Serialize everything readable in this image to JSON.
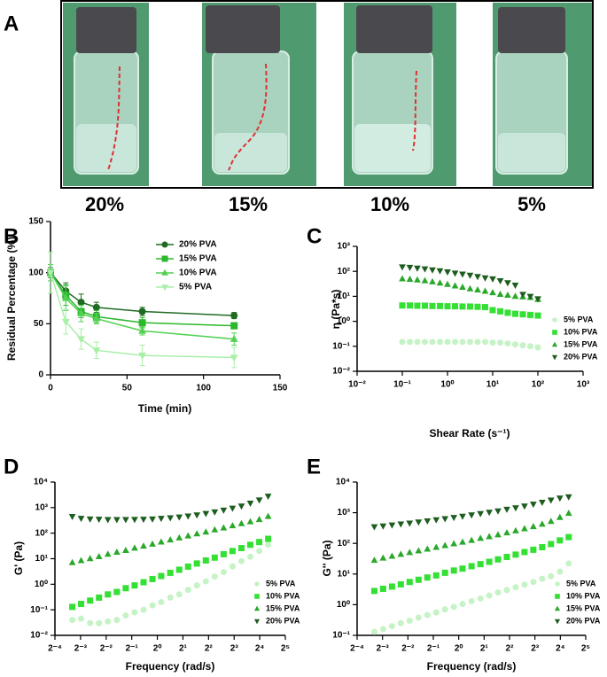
{
  "panel_a": {
    "label": "A",
    "captions": [
      "20%",
      "15%",
      "10%",
      "5%"
    ]
  },
  "chart_data": [
    {
      "type": "line",
      "label": "B",
      "ylabel": "Residual Percentage (%)",
      "xlabel": "Time (min)",
      "x": [
        0,
        10,
        20,
        30,
        60,
        120
      ],
      "xlim": [
        0,
        150
      ],
      "xticks": [
        0,
        50,
        100,
        150
      ],
      "ylim": [
        0,
        150
      ],
      "yticks": [
        0,
        50,
        100,
        150
      ],
      "legend": "upper right",
      "series": [
        {
          "name": "20% PVA",
          "color": "#1f6b22",
          "marker": "circle",
          "values": [
            100,
            82,
            71,
            66,
            62,
            58
          ],
          "errors": [
            5,
            8,
            8,
            5,
            4,
            3
          ]
        },
        {
          "name": "15% PVA",
          "color": "#2cb82c",
          "marker": "square",
          "values": [
            100,
            78,
            62,
            57,
            51,
            48
          ],
          "errors": [
            5,
            10,
            6,
            6,
            5,
            3
          ]
        },
        {
          "name": "10% PVA",
          "color": "#52d152",
          "marker": "triangle-up",
          "values": [
            100,
            75,
            60,
            55,
            43,
            35
          ],
          "errors": [
            8,
            12,
            8,
            5,
            4,
            6
          ]
        },
        {
          "name": "5% PVA",
          "color": "#a8efa8",
          "marker": "triangle-down",
          "values": [
            100,
            52,
            35,
            24,
            19,
            17
          ],
          "errors": [
            20,
            12,
            10,
            8,
            10,
            10
          ]
        }
      ]
    },
    {
      "type": "scatter",
      "label": "C",
      "ylabel": "η (Pa*s)",
      "xlabel": "Shear Rate (s⁻¹)",
      "xlog": true,
      "ylog": true,
      "x": [
        0.1,
        0.147,
        0.215,
        0.316,
        0.464,
        0.681,
        1,
        1.47,
        2.15,
        3.16,
        4.64,
        6.81,
        10,
        14.7,
        21.5,
        31.6,
        46.4,
        68.1,
        100
      ],
      "xlim": [
        0.01,
        1000
      ],
      "xticks": [
        {
          "value": 0.01,
          "label": "10⁻²"
        },
        {
          "value": 0.1,
          "label": "10⁻¹"
        },
        {
          "value": 1,
          "label": "10⁰"
        },
        {
          "value": 10,
          "label": "10¹"
        },
        {
          "value": 100,
          "label": "10²"
        },
        {
          "value": 1000,
          "label": "10³"
        }
      ],
      "ylim": [
        0.01,
        1000
      ],
      "yticks": [
        {
          "value": 0.01,
          "label": "10⁻²"
        },
        {
          "value": 0.1,
          "label": "10⁻¹"
        },
        {
          "value": 1,
          "label": "10⁰"
        },
        {
          "value": 10,
          "label": "10¹"
        },
        {
          "value": 100,
          "label": "10²"
        },
        {
          "value": 1000,
          "label": "10³"
        }
      ],
      "legend": "lower right",
      "series": [
        {
          "name": "5% PVA",
          "color": "#c5f3c5",
          "marker": "circle",
          "values": [
            0.15,
            0.15,
            0.15,
            0.15,
            0.15,
            0.15,
            0.15,
            0.15,
            0.15,
            0.15,
            0.15,
            0.15,
            0.14,
            0.14,
            0.13,
            0.12,
            0.11,
            0.1,
            0.09
          ]
        },
        {
          "name": "10% PVA",
          "color": "#33e033",
          "marker": "square",
          "values": [
            4.3,
            4.3,
            4.2,
            4.2,
            4.1,
            4.1,
            4.0,
            4.0,
            3.9,
            3.9,
            3.8,
            3.7,
            2.8,
            2.5,
            2.2,
            2.0,
            1.9,
            1.8,
            1.7
          ]
        },
        {
          "name": "15% PVA",
          "color": "#2aa82a",
          "marker": "triangle-up",
          "values": [
            50,
            48,
            45,
            42,
            38,
            34,
            30,
            26,
            23,
            20,
            18,
            16,
            14,
            12,
            11,
            10,
            9.5,
            9,
            7.5
          ]
        },
        {
          "name": "20% PVA",
          "color": "#1d5e1f",
          "marker": "triangle-down",
          "values": [
            150,
            145,
            135,
            125,
            115,
            105,
            95,
            85,
            78,
            70,
            62,
            55,
            50,
            42,
            35,
            28,
            12,
            10,
            8
          ]
        }
      ]
    },
    {
      "type": "scatter",
      "label": "D",
      "ylabel": "G' (Pa)",
      "xlabel": "Frequency (rad/s)",
      "xlog": true,
      "ylog": true,
      "x": [
        0.1,
        0.127,
        0.162,
        0.206,
        0.262,
        0.334,
        0.425,
        0.541,
        0.688,
        0.876,
        1.11,
        1.42,
        1.81,
        2.3,
        2.92,
        3.72,
        4.73,
        6.02,
        7.66,
        9.75,
        12.4,
        15.8,
        20.1
      ],
      "xlim": [
        0.0625,
        32
      ],
      "xticks": [
        {
          "value": 0.0625,
          "label": "2⁻⁴"
        },
        {
          "value": 0.125,
          "label": "2⁻³"
        },
        {
          "value": 0.25,
          "label": "2⁻²"
        },
        {
          "value": 0.5,
          "label": "2⁻¹"
        },
        {
          "value": 1,
          "label": "2⁰"
        },
        {
          "value": 2,
          "label": "2¹"
        },
        {
          "value": 4,
          "label": "2²"
        },
        {
          "value": 8,
          "label": "2³"
        },
        {
          "value": 16,
          "label": "2⁴"
        },
        {
          "value": 32,
          "label": "2⁵"
        }
      ],
      "ylim": [
        0.01,
        10000
      ],
      "yticks": [
        {
          "value": 0.01,
          "label": "10⁻²"
        },
        {
          "value": 0.1,
          "label": "10⁻¹"
        },
        {
          "value": 1,
          "label": "10⁰"
        },
        {
          "value": 10,
          "label": "10¹"
        },
        {
          "value": 100,
          "label": "10²"
        },
        {
          "value": 1000,
          "label": "10³"
        },
        {
          "value": 10000,
          "label": "10⁴"
        }
      ],
      "legend": "lower right",
      "series": [
        {
          "name": "5% PVA",
          "color": "#c5f3c5",
          "marker": "circle",
          "values": [
            0.04,
            0.045,
            0.03,
            0.03,
            0.035,
            0.04,
            0.06,
            0.08,
            0.1,
            0.15,
            0.2,
            0.3,
            0.4,
            0.6,
            0.9,
            1.3,
            2,
            3,
            5,
            8,
            12,
            20,
            35
          ]
        },
        {
          "name": "10% PVA",
          "color": "#33e033",
          "marker": "square",
          "values": [
            0.13,
            0.17,
            0.23,
            0.3,
            0.4,
            0.5,
            0.7,
            0.9,
            1.2,
            1.6,
            2.1,
            2.8,
            3.7,
            4.9,
            6.5,
            8.5,
            11,
            15,
            20,
            26,
            35,
            45,
            60
          ]
        },
        {
          "name": "15% PVA",
          "color": "#2aa82a",
          "marker": "triangle-up",
          "values": [
            7,
            8.4,
            10,
            12,
            15,
            18,
            21,
            26,
            31,
            37,
            45,
            54,
            65,
            78,
            94,
            110,
            135,
            160,
            195,
            235,
            280,
            340,
            450
          ]
        },
        {
          "name": "20% PVA",
          "color": "#1d5e1f",
          "marker": "triangle-down",
          "values": [
            450,
            380,
            360,
            350,
            340,
            340,
            340,
            345,
            350,
            360,
            380,
            400,
            430,
            470,
            520,
            590,
            680,
            800,
            950,
            1150,
            1500,
            2000,
            2800
          ]
        }
      ]
    },
    {
      "type": "scatter",
      "label": "E",
      "ylabel": "G'' (Pa)",
      "xlabel": "Frequency (rad/s)",
      "xlog": true,
      "ylog": true,
      "x": [
        0.1,
        0.127,
        0.162,
        0.206,
        0.262,
        0.334,
        0.425,
        0.541,
        0.688,
        0.876,
        1.11,
        1.42,
        1.81,
        2.3,
        2.92,
        3.72,
        4.73,
        6.02,
        7.66,
        9.75,
        12.4,
        15.8,
        20.1
      ],
      "xlim": [
        0.0625,
        32
      ],
      "xticks": [
        {
          "value": 0.0625,
          "label": "2⁻⁴"
        },
        {
          "value": 0.125,
          "label": "2⁻³"
        },
        {
          "value": 0.25,
          "label": "2⁻²"
        },
        {
          "value": 0.5,
          "label": "2⁻¹"
        },
        {
          "value": 1,
          "label": "2⁰"
        },
        {
          "value": 2,
          "label": "2¹"
        },
        {
          "value": 4,
          "label": "2²"
        },
        {
          "value": 8,
          "label": "2³"
        },
        {
          "value": 16,
          "label": "2⁴"
        },
        {
          "value": 32,
          "label": "2⁵"
        }
      ],
      "ylim": [
        0.1,
        10000
      ],
      "yticks": [
        {
          "value": 0.1,
          "label": "10⁻¹"
        },
        {
          "value": 1,
          "label": "10⁰"
        },
        {
          "value": 10,
          "label": "10¹"
        },
        {
          "value": 100,
          "label": "10²"
        },
        {
          "value": 1000,
          "label": "10³"
        },
        {
          "value": 10000,
          "label": "10⁴"
        }
      ],
      "legend": "lower right",
      "series": [
        {
          "name": "5% PVA",
          "color": "#c5f3c5",
          "marker": "circle",
          "values": [
            0.13,
            0.16,
            0.2,
            0.25,
            0.3,
            0.38,
            0.46,
            0.56,
            0.7,
            0.85,
            1.05,
            1.3,
            1.6,
            2,
            2.5,
            3,
            3.7,
            4.5,
            5.5,
            7,
            8.5,
            12,
            22
          ]
        },
        {
          "name": "10% PVA",
          "color": "#33e033",
          "marker": "square",
          "values": [
            2.8,
            3.3,
            3.9,
            4.6,
            5.5,
            6.5,
            7.7,
            9,
            11,
            13,
            15,
            18,
            21,
            25,
            30,
            36,
            43,
            52,
            62,
            75,
            95,
            125,
            160
          ]
        },
        {
          "name": "15% PVA",
          "color": "#2aa82a",
          "marker": "triangle-up",
          "values": [
            28,
            33,
            38,
            44,
            50,
            57,
            65,
            74,
            85,
            97,
            110,
            125,
            145,
            165,
            190,
            220,
            255,
            300,
            350,
            420,
            520,
            700,
            950
          ]
        },
        {
          "name": "20% PVA",
          "color": "#1d5e1f",
          "marker": "triangle-down",
          "values": [
            350,
            370,
            400,
            430,
            460,
            500,
            540,
            590,
            640,
            700,
            770,
            850,
            940,
            1040,
            1150,
            1300,
            1450,
            1650,
            1900,
            2200,
            2600,
            3000,
            3300
          ]
        }
      ]
    }
  ]
}
